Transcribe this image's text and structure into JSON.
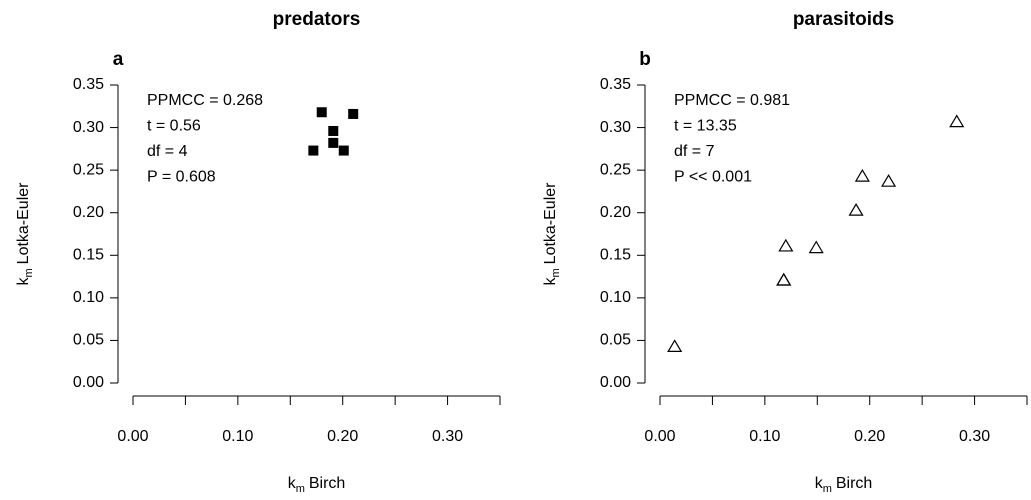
{
  "chart_data": [
    {
      "type": "scatter",
      "title": "predators",
      "panel_label": "a",
      "annotations": [
        "PPMCC = 0.268",
        "t = 0.56",
        "df = 4",
        "P = 0.608"
      ],
      "xlabel": {
        "base": "k",
        "subscript": "m",
        "text": "Birch"
      },
      "ylabel": {
        "base": "k",
        "subscript": "m",
        "text": "Lotka-Euler"
      },
      "x": [
        0.18,
        0.21,
        0.191,
        0.191,
        0.172,
        0.201
      ],
      "y": [
        0.318,
        0.316,
        0.296,
        0.282,
        0.273,
        0.273
      ],
      "marker": "square",
      "color": "#000000",
      "xlim": [
        0,
        0.35
      ],
      "ylim": [
        0,
        0.35
      ],
      "xticks": [
        {
          "value": 0,
          "label": "0.00"
        },
        {
          "value": 0.05,
          "label": null
        },
        {
          "value": 0.1,
          "label": "0.10"
        },
        {
          "value": 0.15,
          "label": null
        },
        {
          "value": 0.2,
          "label": "0.20"
        },
        {
          "value": 0.25,
          "label": null
        },
        {
          "value": 0.3,
          "label": "0.30"
        },
        {
          "value": 0.35,
          "label": null
        }
      ],
      "yticks": [
        {
          "value": 0,
          "label": "0.00"
        },
        0.05,
        {
          "value": 0.1,
          "label": "0.10"
        },
        0.15,
        {
          "value": 0.2,
          "label": "0.20"
        },
        0.25,
        {
          "value": 0.3,
          "label": "0.30"
        },
        0.35
      ]
    },
    {
      "type": "scatter",
      "title": "parasitoids",
      "panel_label": "b",
      "annotations": [
        "PPMCC = 0.981",
        "t = 13.35",
        "df = 7",
        "P << 0.001"
      ],
      "xlabel": {
        "base": "k",
        "subscript": "m",
        "text": "Birch"
      },
      "ylabel": {
        "base": "k",
        "subscript": "m",
        "text": "Lotka-Euler"
      },
      "x": [
        0.014,
        0.12,
        0.118,
        0.118,
        0.149,
        0.187,
        0.193,
        0.218,
        0.283
      ],
      "y": [
        0.043,
        0.161,
        0.121,
        0.121,
        0.159,
        0.203,
        0.243,
        0.237,
        0.307
      ],
      "marker": "triangle",
      "color": "#000000",
      "xlim": [
        0,
        0.35
      ],
      "ylim": [
        0,
        0.35
      ],
      "xticks": [
        {
          "value": 0,
          "label": "0.00"
        },
        {
          "value": 0.05,
          "label": null
        },
        {
          "value": 0.1,
          "label": "0.10"
        },
        {
          "value": 0.15,
          "label": null
        },
        {
          "value": 0.2,
          "label": "0.20"
        },
        {
          "value": 0.25,
          "label": null
        },
        {
          "value": 0.3,
          "label": "0.30"
        },
        {
          "value": 0.35,
          "label": null
        }
      ],
      "yticks": [
        {
          "value": 0,
          "label": "0.00"
        },
        0.05,
        {
          "value": 0.1,
          "label": "0.10"
        },
        0.15,
        {
          "value": 0.2,
          "label": "0.20"
        },
        0.25,
        {
          "value": 0.3,
          "label": "0.30"
        },
        0.35
      ]
    }
  ]
}
